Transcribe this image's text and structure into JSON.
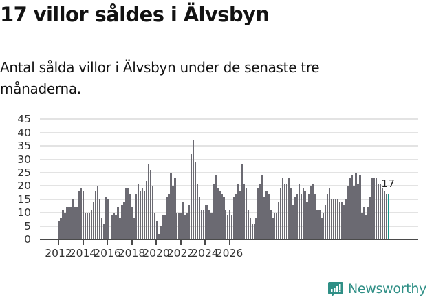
{
  "header": {
    "title": "17 villor såldes i Älvsbyn",
    "subtitle": "Antal sålda villor i Älvsbyn under de senaste tre månaderna."
  },
  "branding": {
    "logo_text": "Newsworthy",
    "logo_icon": "bar-chart-speech-bubble-icon",
    "color": "#2f8f86"
  },
  "colors": {
    "bar": "#6b6a72",
    "highlight": "#15958a",
    "grid": "#e3e3e3",
    "axis": "#4a4a4a"
  },
  "chart_data": {
    "type": "bar",
    "title": "17 villor såldes i Älvsbyn",
    "subtitle": "Antal sålda villor i Älvsbyn under de senaste tre månaderna.",
    "xlabel": "",
    "ylabel": "",
    "ylim": [
      0,
      45
    ],
    "yticks": [
      0,
      5,
      10,
      15,
      20,
      25,
      30,
      35,
      40,
      45
    ],
    "xticks": [
      "2012",
      "2014",
      "2016",
      "2018",
      "2020",
      "2022",
      "2024",
      "2026"
    ],
    "grid": true,
    "legend": null,
    "x_start": "2012-01",
    "x_end": "2026-01",
    "frequency": "monthly (rolling 3-month sum)",
    "annotation": {
      "label": "17",
      "x": "2026-01",
      "value": 17
    },
    "highlight_last": true,
    "values": [
      7,
      8,
      11,
      10,
      12,
      12,
      12,
      15,
      12,
      12,
      18,
      19,
      18,
      10,
      10,
      10,
      11,
      14,
      18,
      20,
      15,
      8,
      6,
      16,
      15,
      0,
      9,
      10,
      9,
      12,
      8,
      13,
      14,
      19,
      19,
      17,
      12,
      8,
      17,
      21,
      18,
      19,
      18,
      22,
      28,
      26,
      20,
      10,
      7,
      2,
      5,
      9,
      9,
      16,
      17,
      25,
      20,
      23,
      10,
      10,
      10,
      14,
      9,
      10,
      13,
      32,
      37,
      29,
      21,
      16,
      11,
      11,
      13,
      13,
      11,
      10,
      21,
      24,
      19,
      18,
      17,
      16,
      11,
      9,
      11,
      9,
      16,
      17,
      21,
      18,
      28,
      21,
      19,
      11,
      8,
      6,
      6,
      8,
      19,
      21,
      24,
      16,
      18,
      17,
      11,
      8,
      10,
      10,
      14,
      19,
      23,
      21,
      21,
      23,
      19,
      13,
      16,
      17,
      21,
      17,
      19,
      18,
      14,
      17,
      20,
      21,
      17,
      11,
      11,
      8,
      10,
      13,
      17,
      19,
      15,
      15,
      15,
      15,
      14,
      14,
      13,
      15,
      20,
      23,
      24,
      20,
      25,
      21,
      24,
      10,
      12,
      9,
      12,
      16,
      23,
      23,
      23,
      21,
      21,
      19,
      18,
      17,
      17
    ]
  }
}
